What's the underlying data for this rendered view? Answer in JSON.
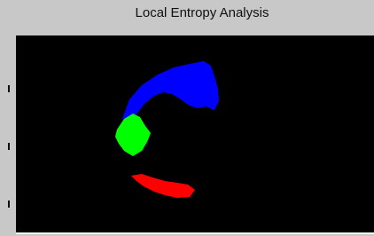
{
  "window": {
    "title": "Local Entropy Analysis"
  }
}
